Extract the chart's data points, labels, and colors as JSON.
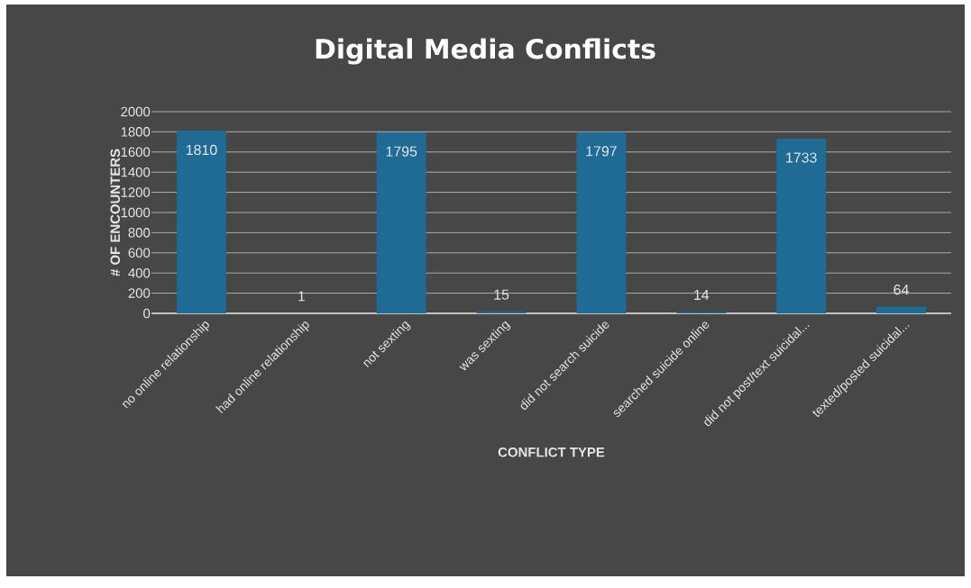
{
  "chart_data": {
    "type": "bar",
    "title": "Digital Media Conflicts",
    "xlabel": "CONFLICT TYPE",
    "ylabel": "# OF ENCOUNTERS",
    "categories": [
      "no online relationship",
      "had online relationship",
      "not sexting",
      "was sexting",
      "did not search suicide",
      "searched suicide online",
      "did not post/text suicidal...",
      "texted/posted suicidal..."
    ],
    "values": [
      1810,
      1,
      1795,
      15,
      1797,
      14,
      1733,
      64
    ],
    "color": "#1f6b96",
    "ylim": [
      0,
      2000
    ],
    "yticks": [
      0,
      200,
      400,
      600,
      800,
      1000,
      1200,
      1400,
      1600,
      1800,
      2000
    ],
    "grid": "y",
    "data_labels": true
  }
}
